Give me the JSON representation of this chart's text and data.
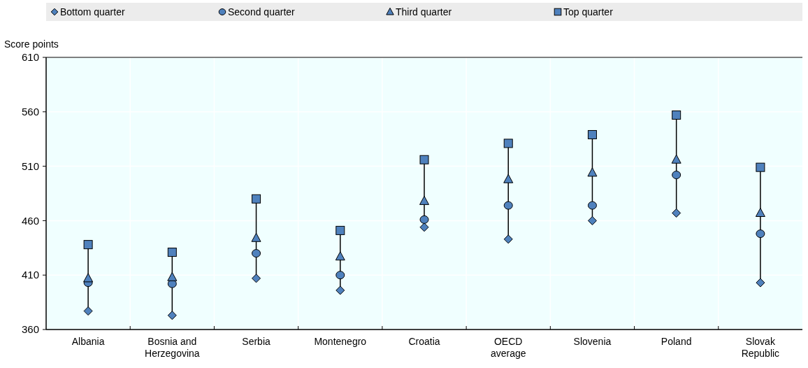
{
  "chart_data": {
    "type": "scatter",
    "ylabel": "Score points",
    "categories": [
      "Albania",
      "Bosnia and Herzegovina",
      "Serbia",
      "Montenegro",
      "Croatia",
      "OECD average",
      "Slovenia",
      "Poland",
      "Slovak Republic"
    ],
    "series": [
      {
        "name": "Bottom quarter",
        "color": "#4f81bd",
        "marker": "diamond",
        "values": [
          377,
          373,
          407,
          396,
          454,
          443,
          460,
          467,
          403
        ]
      },
      {
        "name": "Second quarter",
        "color": "#4f81bd",
        "marker": "circle",
        "values": [
          403,
          402,
          430,
          410,
          461,
          474,
          474,
          502,
          448
        ]
      },
      {
        "name": "Third quarter",
        "color": "#4f81bd",
        "marker": "triangle",
        "values": [
          407,
          408,
          444,
          427,
          478,
          498,
          504,
          516,
          467
        ]
      },
      {
        "name": "Top quarter",
        "color": "#4f81bd",
        "marker": "square",
        "values": [
          438,
          431,
          480,
          451,
          516,
          531,
          539,
          557,
          509
        ]
      }
    ],
    "ylim": [
      360,
      610
    ],
    "yticks": [
      360,
      410,
      460,
      510,
      560,
      610
    ],
    "grid": true,
    "legend": "top"
  }
}
